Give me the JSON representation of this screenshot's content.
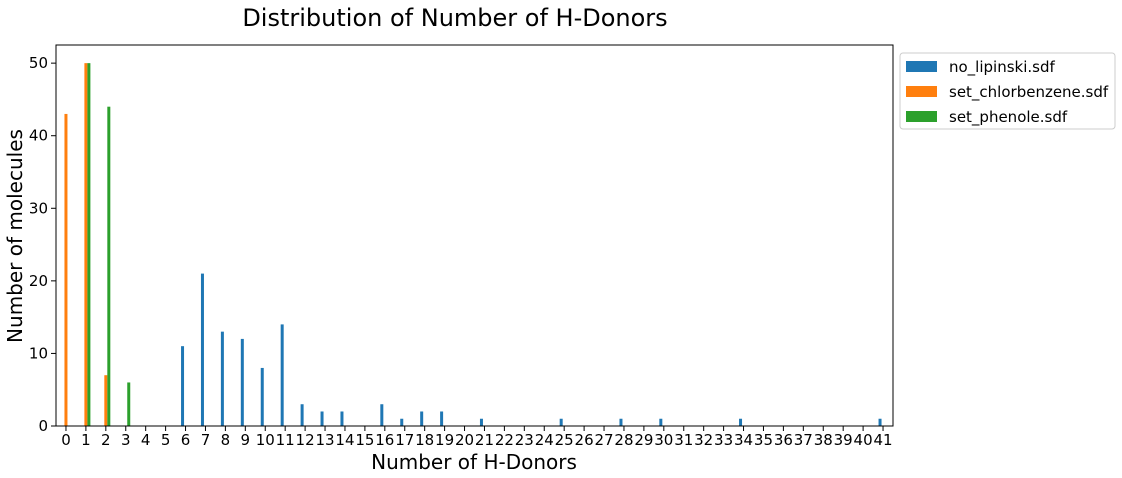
{
  "chart_data": {
    "type": "bar",
    "title": "Distribution of Number of H-Donors",
    "xlabel": "Number of H-Donors",
    "ylabel": "Number of molecules",
    "categories": [
      "0",
      "1",
      "2",
      "3",
      "4",
      "5",
      "6",
      "7",
      "8",
      "9",
      "10",
      "11",
      "12",
      "13",
      "14",
      "15",
      "16",
      "17",
      "18",
      "19",
      "20",
      "21",
      "22",
      "23",
      "24",
      "25",
      "26",
      "27",
      "28",
      "29",
      "30",
      "31",
      "32",
      "33",
      "34",
      "35",
      "36",
      "37",
      "38",
      "39",
      "40",
      "41"
    ],
    "ylim": [
      0,
      52.5
    ],
    "yticks": [
      0,
      10,
      20,
      30,
      40,
      50
    ],
    "grid": false,
    "legend_position": "outside-top-right",
    "series": [
      {
        "name": "no_lipinski.sdf",
        "color": "#1f77b4",
        "values": [
          0,
          0,
          0,
          0,
          0,
          0,
          11,
          21,
          13,
          12,
          8,
          14,
          3,
          2,
          2,
          0,
          3,
          1,
          2,
          2,
          0,
          1,
          0,
          0,
          0,
          1,
          0,
          0,
          1,
          0,
          1,
          0,
          0,
          0,
          1,
          0,
          0,
          0,
          0,
          0,
          0,
          1
        ]
      },
      {
        "name": "set_chlorbenzene.sdf",
        "color": "#ff7f0e",
        "values": [
          43,
          50,
          7,
          0,
          0,
          0,
          0,
          0,
          0,
          0,
          0,
          0,
          0,
          0,
          0,
          0,
          0,
          0,
          0,
          0,
          0,
          0,
          0,
          0,
          0,
          0,
          0,
          0,
          0,
          0,
          0,
          0,
          0,
          0,
          0,
          0,
          0,
          0,
          0,
          0,
          0,
          0
        ]
      },
      {
        "name": "set_phenole.sdf",
        "color": "#2ca02c",
        "values": [
          0,
          50,
          44,
          6,
          0,
          0,
          0,
          0,
          0,
          0,
          0,
          0,
          0,
          0,
          0,
          0,
          0,
          0,
          0,
          0,
          0,
          0,
          0,
          0,
          0,
          0,
          0,
          0,
          0,
          0,
          0,
          0,
          0,
          0,
          0,
          0,
          0,
          0,
          0,
          0,
          0,
          0
        ]
      }
    ]
  }
}
